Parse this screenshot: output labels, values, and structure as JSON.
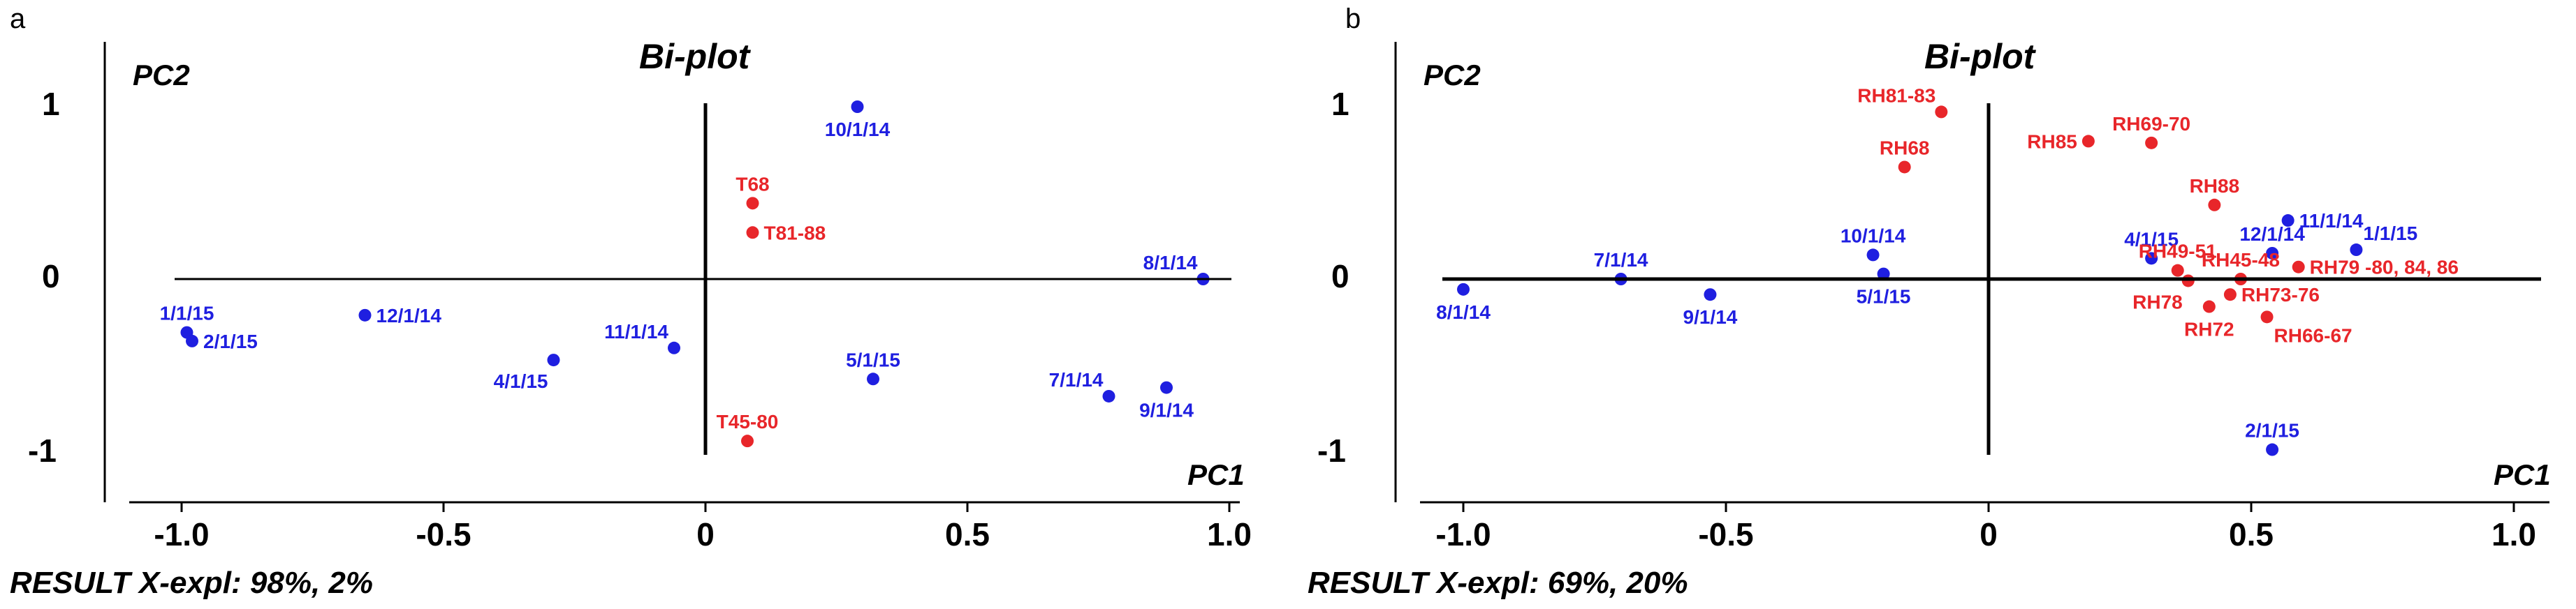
{
  "panels": [
    {
      "letter": "a",
      "title": "Bi-plot",
      "footer": "RESULT X-expl: 98%, 2%",
      "chart_data": {
        "type": "scatter",
        "title": "Bi-plot",
        "xlabel": "PC1",
        "ylabel": "PC2",
        "xlim": [
          -1.1,
          1.15
        ],
        "ylim": [
          -1.2,
          1.2
        ],
        "x_ticks": [
          "-1.0",
          "-0.5",
          "0",
          "0.5",
          "1.0"
        ],
        "y_ticks": [
          "1",
          "0",
          "-1"
        ],
        "grid": false,
        "colors": {
          "scores": "#1f1fe0",
          "loadings": "#e8262a"
        },
        "points": [
          {
            "label": "10/1/14",
            "x": 0.29,
            "y": 1.0,
            "color": "#1f1fe0",
            "pos": "below"
          },
          {
            "label": "8/1/14",
            "x": 0.95,
            "y": 0.0,
            "color": "#1f1fe0",
            "pos": "above-left"
          },
          {
            "label": "12/1/14",
            "x": -0.65,
            "y": -0.21,
            "color": "#1f1fe0",
            "pos": "right"
          },
          {
            "label": "1/1/15",
            "x": -0.99,
            "y": -0.31,
            "color": "#1f1fe0",
            "pos": "above"
          },
          {
            "label": "2/1/15",
            "x": -0.98,
            "y": -0.36,
            "color": "#1f1fe0",
            "pos": "right"
          },
          {
            "label": "11/1/14",
            "x": -0.06,
            "y": -0.4,
            "color": "#1f1fe0",
            "pos": "above-left"
          },
          {
            "label": "4/1/15",
            "x": -0.29,
            "y": -0.47,
            "color": "#1f1fe0",
            "pos": "below-left"
          },
          {
            "label": "5/1/15",
            "x": 0.32,
            "y": -0.58,
            "color": "#1f1fe0",
            "pos": "above"
          },
          {
            "label": "7/1/14",
            "x": 0.77,
            "y": -0.68,
            "color": "#1f1fe0",
            "pos": "above-left"
          },
          {
            "label": "9/1/14",
            "x": 0.88,
            "y": -0.63,
            "color": "#1f1fe0",
            "pos": "below"
          },
          {
            "label": "T68",
            "x": 0.09,
            "y": 0.44,
            "color": "#e8262a",
            "pos": "above"
          },
          {
            "label": "T81-88",
            "x": 0.09,
            "y": 0.27,
            "color": "#e8262a",
            "pos": "right"
          },
          {
            "label": "T45-80",
            "x": 0.08,
            "y": -0.94,
            "color": "#e8262a",
            "pos": "above"
          }
        ]
      }
    },
    {
      "letter": "b",
      "title": "Bi-plot",
      "footer": "RESULT X-expl: 69%, 20%",
      "chart_data": {
        "type": "scatter",
        "title": "Bi-plot",
        "xlabel": "PC1",
        "ylabel": "PC2",
        "xlim": [
          -1.1,
          1.1
        ],
        "ylim": [
          -1.2,
          1.2
        ],
        "x_ticks": [
          "-1.0",
          "-0.5",
          "0",
          "0.5",
          "1.0"
        ],
        "y_ticks": [
          "1",
          "0",
          "-1"
        ],
        "grid": false,
        "colors": {
          "scores": "#1f1fe0",
          "loadings": "#e8262a"
        },
        "points": [
          {
            "label": "8/1/14",
            "x": -1.0,
            "y": -0.06,
            "color": "#1f1fe0",
            "pos": "below"
          },
          {
            "label": "7/1/14",
            "x": -0.7,
            "y": 0.0,
            "color": "#1f1fe0",
            "pos": "above"
          },
          {
            "label": "9/1/14",
            "x": -0.53,
            "y": -0.09,
            "color": "#1f1fe0",
            "pos": "below"
          },
          {
            "label": "10/1/14",
            "x": -0.22,
            "y": 0.14,
            "color": "#1f1fe0",
            "pos": "above"
          },
          {
            "label": "5/1/15",
            "x": -0.2,
            "y": 0.03,
            "color": "#1f1fe0",
            "pos": "below"
          },
          {
            "label": "4/1/15",
            "x": 0.31,
            "y": 0.12,
            "color": "#1f1fe0",
            "pos": "above"
          },
          {
            "label": "11/1/14",
            "x": 0.57,
            "y": 0.34,
            "color": "#1f1fe0",
            "pos": "right"
          },
          {
            "label": "12/1/14",
            "x": 0.54,
            "y": 0.15,
            "color": "#1f1fe0",
            "pos": "above"
          },
          {
            "label": "1/1/15",
            "x": 0.7,
            "y": 0.17,
            "color": "#1f1fe0",
            "pos": "above-right"
          },
          {
            "label": "2/1/15",
            "x": 0.54,
            "y": -0.99,
            "color": "#1f1fe0",
            "pos": "above"
          },
          {
            "label": "RH81-83",
            "x": -0.09,
            "y": 0.97,
            "color": "#e8262a",
            "pos": "above-left"
          },
          {
            "label": "RH68",
            "x": -0.16,
            "y": 0.65,
            "color": "#e8262a",
            "pos": "above"
          },
          {
            "label": "RH85",
            "x": 0.19,
            "y": 0.8,
            "color": "#e8262a",
            "pos": "left"
          },
          {
            "label": "RH69-70",
            "x": 0.31,
            "y": 0.79,
            "color": "#e8262a",
            "pos": "above"
          },
          {
            "label": "RH88",
            "x": 0.43,
            "y": 0.43,
            "color": "#e8262a",
            "pos": "above"
          },
          {
            "label": "RH49-51",
            "x": 0.36,
            "y": 0.05,
            "color": "#e8262a",
            "pos": "above"
          },
          {
            "label": "RH45-48",
            "x": 0.48,
            "y": 0.0,
            "color": "#e8262a",
            "pos": "above"
          },
          {
            "label": "RH79 -80, 84, 86",
            "x": 0.59,
            "y": 0.07,
            "color": "#e8262a",
            "pos": "right"
          },
          {
            "label": "RH78",
            "x": 0.38,
            "y": -0.01,
            "color": "#e8262a",
            "pos": "below-left"
          },
          {
            "label": "RH73-76",
            "x": 0.46,
            "y": -0.09,
            "color": "#e8262a",
            "pos": "right"
          },
          {
            "label": "RH72",
            "x": 0.42,
            "y": -0.16,
            "color": "#e8262a",
            "pos": "below"
          },
          {
            "label": "RH66-67",
            "x": 0.53,
            "y": -0.22,
            "color": "#e8262a",
            "pos": "below-right"
          }
        ]
      }
    }
  ]
}
